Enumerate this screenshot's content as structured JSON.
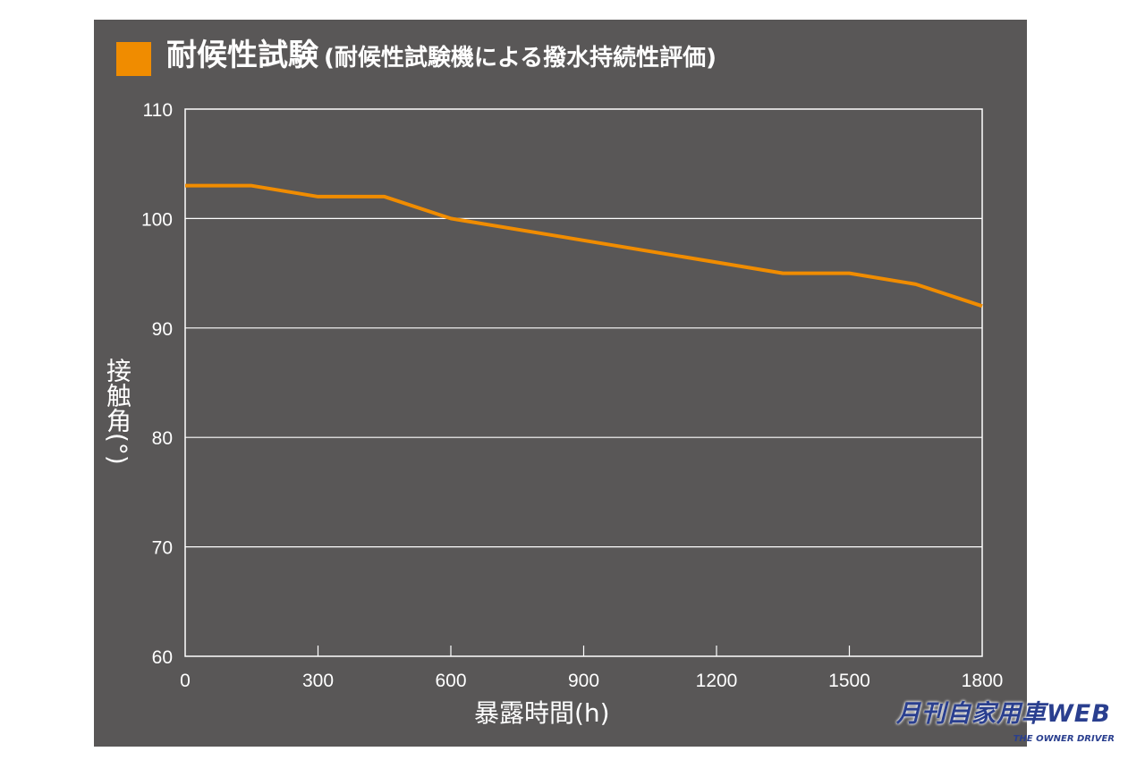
{
  "chart_data": {
    "type": "line",
    "title": "耐候性試験",
    "subtitle": "(耐候性試験機による撥水持続性評価)",
    "xlabel": "暴露時間(h)",
    "ylabel": "接触角(°)",
    "xlim": [
      0,
      1800
    ],
    "ylim": [
      60,
      110
    ],
    "xticks": [
      0,
      300,
      600,
      900,
      1200,
      1500,
      1800
    ],
    "yticks": [
      60,
      70,
      80,
      90,
      100,
      110
    ],
    "grid": "horizontal",
    "series": [
      {
        "color": "#f08c00",
        "x": [
          0,
          150,
          300,
          450,
          600,
          1350,
          1500,
          1650,
          1800
        ],
        "y": [
          103,
          103,
          102,
          102,
          100,
          95,
          95,
          94,
          92
        ]
      }
    ],
    "background": "#595757",
    "accent": "#f08c00"
  },
  "logo": {
    "main": "月刊自家用車WEB",
    "sub": "THE OWNER DRIVER"
  }
}
